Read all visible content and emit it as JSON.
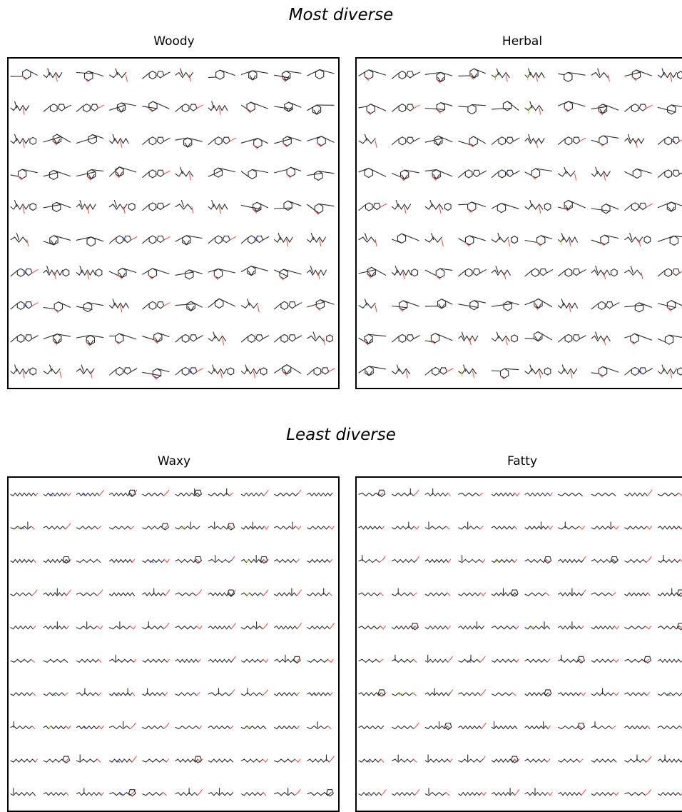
{
  "sections": [
    {
      "title": "Most diverse",
      "panels": [
        {
          "title": "Woody"
        },
        {
          "title": "Herbal"
        }
      ]
    },
    {
      "title": "Least diverse",
      "panels": [
        {
          "title": "Waxy"
        },
        {
          "title": "Fatty"
        }
      ]
    }
  ],
  "colors": {
    "bond": "#2b2b2b",
    "oxygen": "#f05050",
    "nitrogen": "#3c50ff",
    "sulfur": "#c8c81e"
  }
}
